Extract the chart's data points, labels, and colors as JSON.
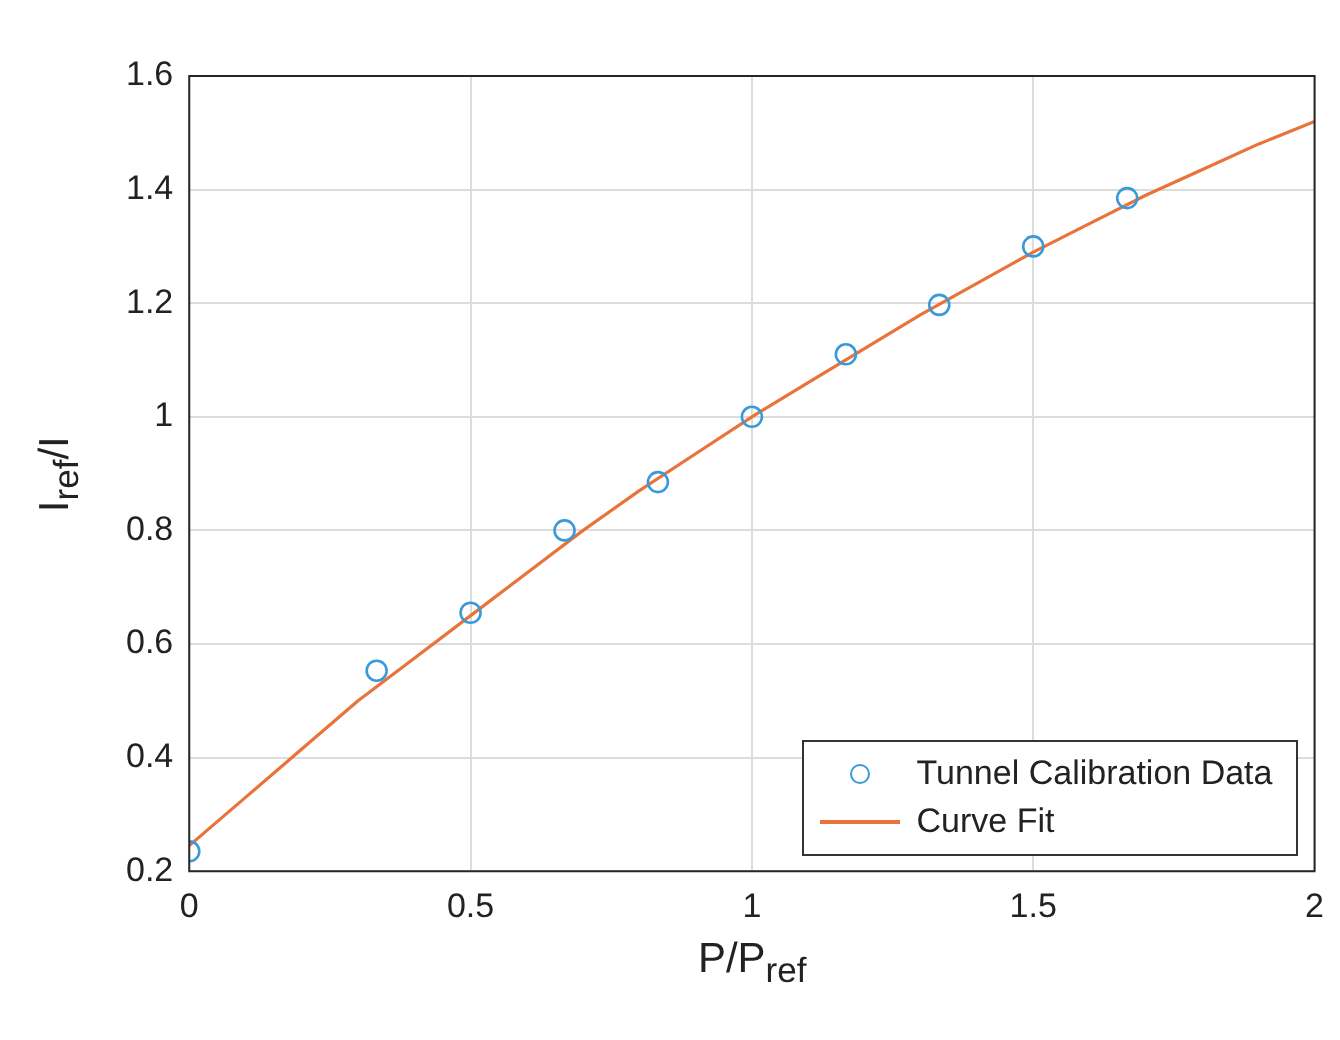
{
  "chart_data": {
    "type": "scatter",
    "xlabel": "P/P$_{ref}$",
    "ylabel": "I$_{ref}$/I",
    "xlim": [
      0,
      2
    ],
    "xticks": [
      0,
      0.5,
      1,
      1.5,
      2
    ],
    "ylim": [
      0.2,
      1.6
    ],
    "yticks": [
      0.2,
      0.4,
      0.6,
      0.8,
      1,
      1.2,
      1.4,
      1.6
    ],
    "grid": true,
    "legend": "bottom right",
    "series": [
      {
        "name": "Tunnel Calibration Data",
        "marker": "circle",
        "color": "#3a9ad9",
        "x": [
          0,
          0.333,
          0.5,
          0.667,
          0.833,
          1,
          1.167,
          1.333,
          1.5,
          1.667
        ],
        "values": [
          0.235,
          0.553,
          0.655,
          0.8,
          0.885,
          1.0,
          1.11,
          1.197,
          1.3,
          1.385
        ]
      },
      {
        "name": "Curve Fit",
        "type": "line",
        "marker": "none",
        "line_style": "solid",
        "color": "#e8743b",
        "x": [
          0,
          0.1,
          0.2,
          0.3,
          0.4,
          0.5,
          0.6,
          0.7,
          0.8,
          0.9,
          1,
          1.1,
          1.2,
          1.3,
          1.4,
          1.5,
          1.6,
          1.7,
          1.8,
          1.9,
          2
        ],
        "values": [
          0.245,
          0.33,
          0.415,
          0.5,
          0.575,
          0.65,
          0.725,
          0.8,
          0.87,
          0.935,
          1.0,
          1.06,
          1.12,
          1.18,
          1.235,
          1.29,
          1.34,
          1.39,
          1.435,
          1.48,
          1.52
        ]
      }
    ]
  }
}
